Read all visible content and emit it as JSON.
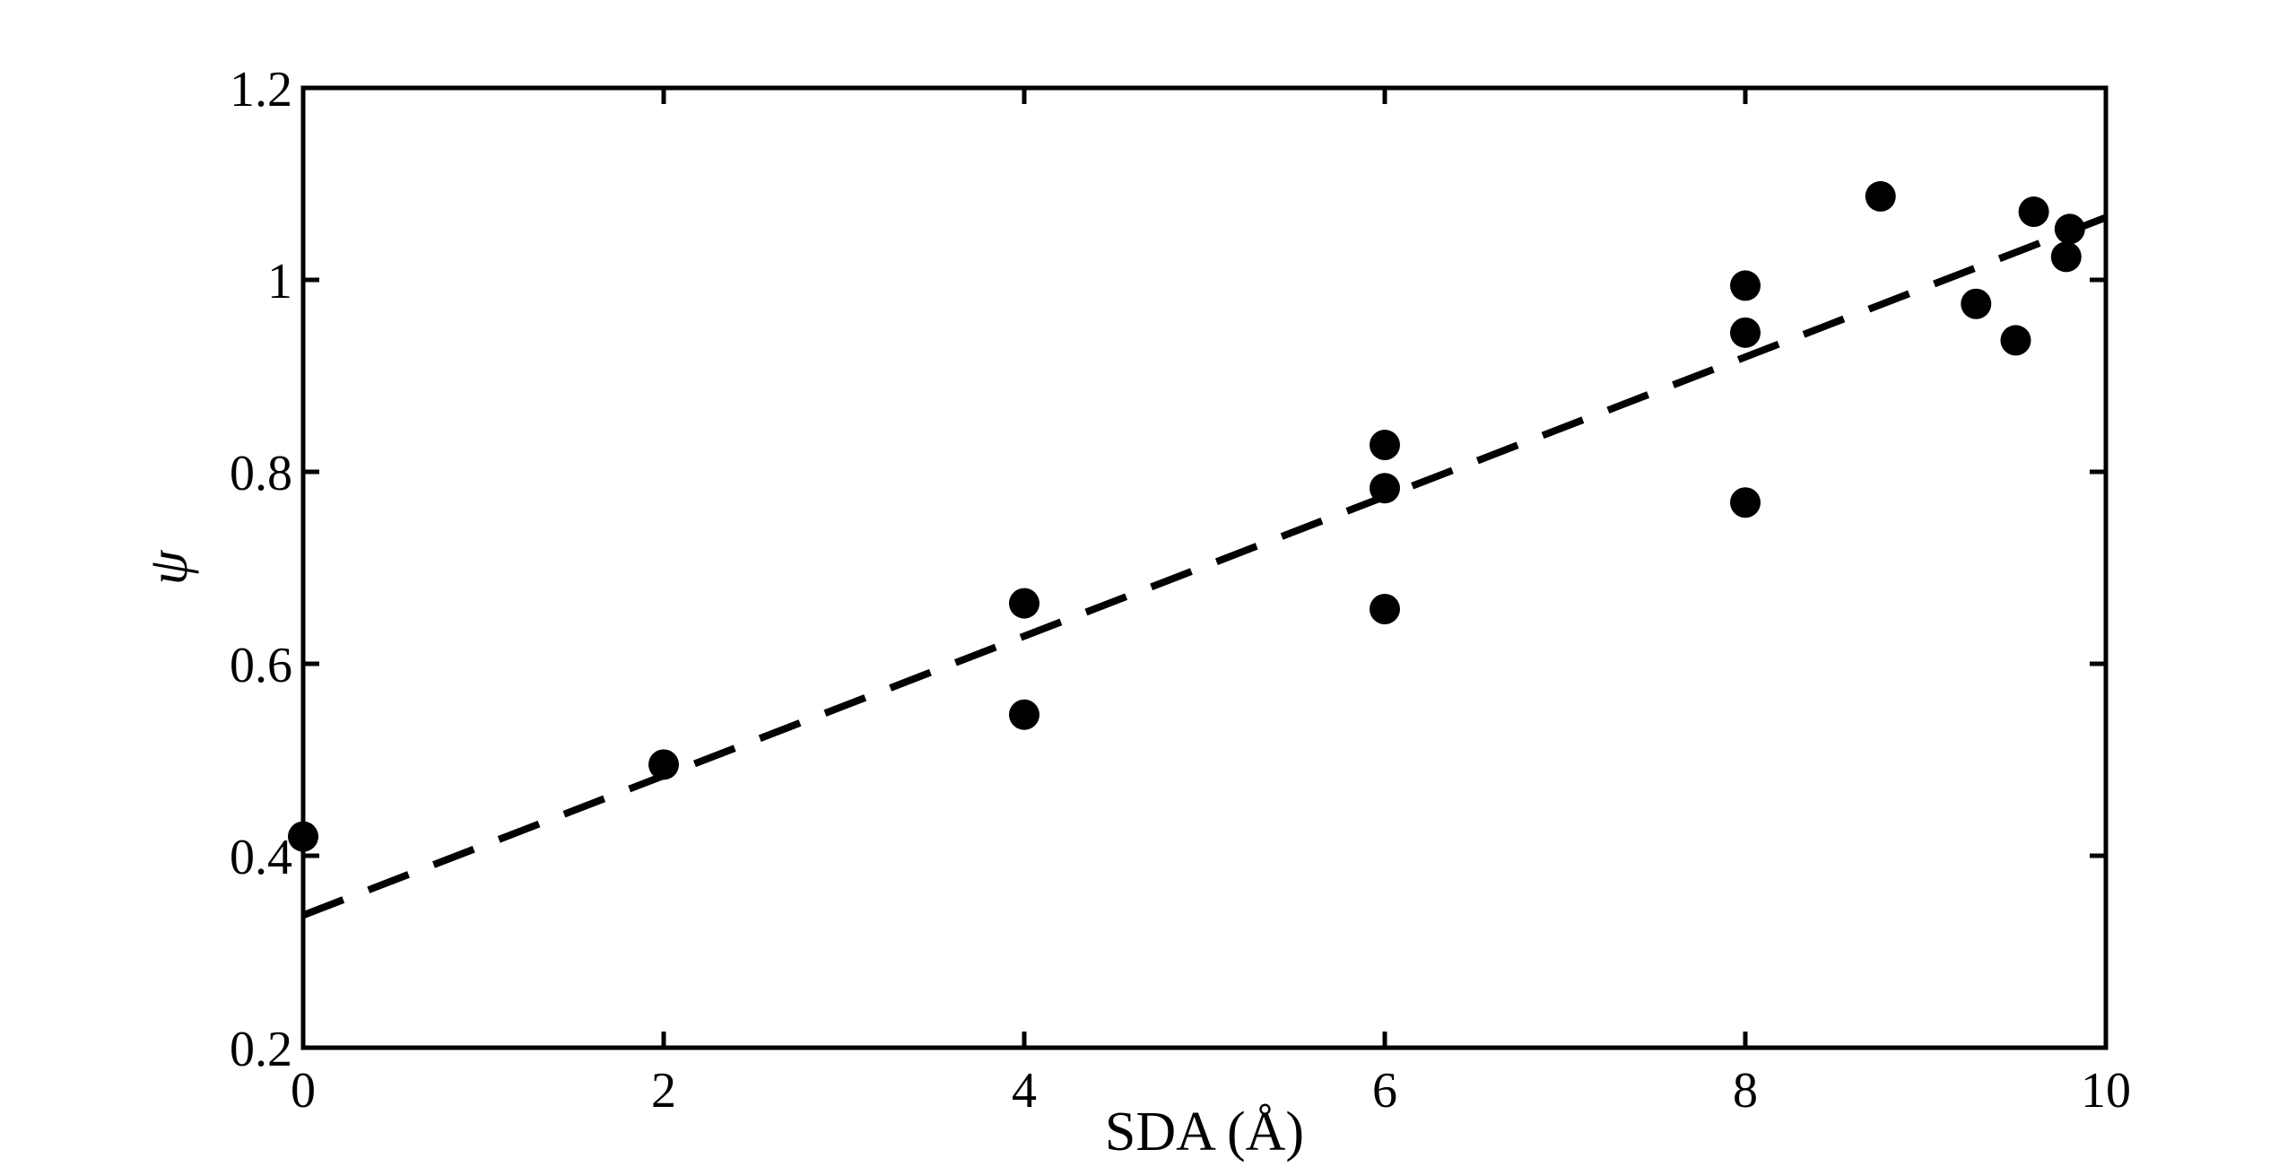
{
  "chart_data": {
    "type": "scatter",
    "title": "",
    "xlabel": "SDA (Å)",
    "ylabel": "ψ",
    "xlim": [
      0,
      10
    ],
    "ylim": [
      0.2,
      1.2
    ],
    "x_ticks": [
      0,
      2,
      4,
      6,
      8,
      10
    ],
    "x_tick_labels": [
      "0",
      "2",
      "4",
      "6",
      "8",
      "10"
    ],
    "y_ticks": [
      0.2,
      0.4,
      0.6,
      0.8,
      1.0,
      1.2
    ],
    "y_tick_labels": [
      "0.2",
      "0.4",
      "0.6",
      "0.8",
      "1",
      "1.2"
    ],
    "grid": false,
    "legend": "none",
    "series": [
      {
        "kind": "points",
        "color": "#000000",
        "points": [
          {
            "x": 0,
            "y": 0.42
          },
          {
            "x": 2,
            "y": 0.495
          },
          {
            "x": 4,
            "y": 0.663
          },
          {
            "x": 4,
            "y": 0.547
          },
          {
            "x": 6,
            "y": 0.828
          },
          {
            "x": 6,
            "y": 0.783
          },
          {
            "x": 6,
            "y": 0.657
          },
          {
            "x": 8,
            "y": 0.994
          },
          {
            "x": 8,
            "y": 0.945
          },
          {
            "x": 8,
            "y": 0.768
          },
          {
            "x": 8.75,
            "y": 1.087
          },
          {
            "x": 9.28,
            "y": 0.975
          },
          {
            "x": 9.5,
            "y": 0.937
          },
          {
            "x": 9.6,
            "y": 1.071
          },
          {
            "x": 9.78,
            "y": 1.024
          },
          {
            "x": 9.8,
            "y": 1.053
          }
        ]
      },
      {
        "kind": "fit-line",
        "style": "dashed",
        "color": "#000000",
        "points": [
          {
            "x": 0,
            "y": 0.338
          },
          {
            "x": 10,
            "y": 1.065
          }
        ]
      }
    ]
  }
}
